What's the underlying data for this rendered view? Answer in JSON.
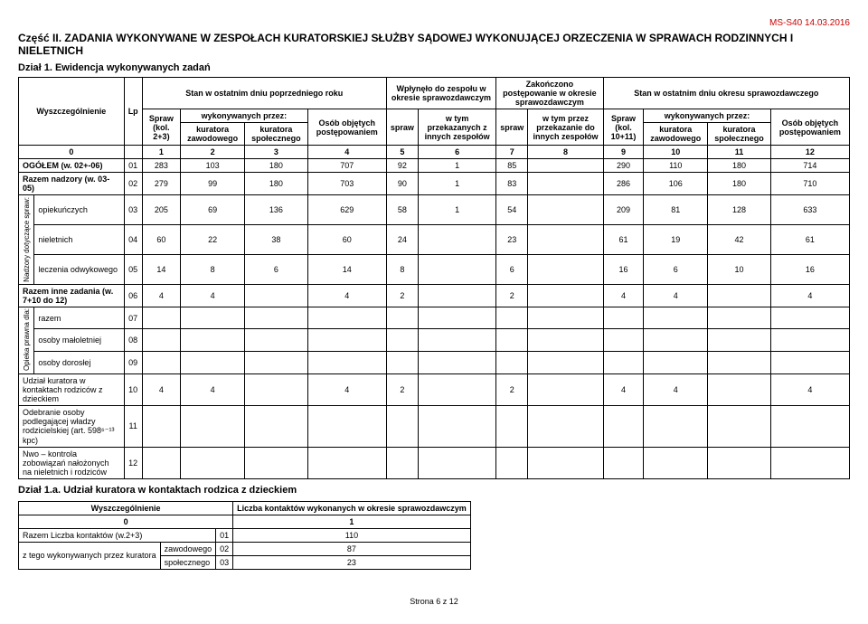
{
  "doc_id": "MS-S40 14.03.2016",
  "section2_title": "Część II. ZADANIA WYKONYWANE W ZESPOŁACH KURATORSKIEJ SŁUŻBY SĄDOWEJ WYKONUJĄCEJ ORZECZENIA W SPRAWACH RODZINNYCH I NIELETNICH",
  "dzial1_title": "Dział 1. Ewidencja wykonywanych zadań",
  "headers": {
    "wyszczegolnienie": "Wyszczególnienie",
    "lp": "Lp",
    "stan_poprz": "Stan w ostatnim dniu poprzedniego roku",
    "wplynelo": "Wpłynęło do zespołu w okresie sprawozdawczym",
    "zakonczono": "Zakończono postępowanie w okresie sprawozdawczym",
    "stan_ost": "Stan w ostatnim dniu okresu sprawozdawczego",
    "spraw_23": "Spraw (kol. 2+3)",
    "wykonywanych": "wykonywanych przez:",
    "osob_obj": "Osób objętych postępowaniem",
    "kur_zaw": "kuratora zawodowego",
    "kur_spol": "kuratora społecznego",
    "spraw": "spraw",
    "w_tym_przek": "w tym przekazanych z innych zespołów",
    "w_tym_przez": "w tym przez przekazanie do innych zespołów",
    "spraw_1011": "Spraw (kol. 10+11)"
  },
  "colnums": [
    "0",
    "1",
    "2",
    "3",
    "4",
    "5",
    "6",
    "7",
    "8",
    "9",
    "10",
    "11",
    "12"
  ],
  "group_nadzory": "Nadzory dotyczące spraw:",
  "group_opieka": "Opieka prawna dla:",
  "rows": [
    {
      "label": "OGÓŁEM (w. 02+-06)",
      "lp": "01",
      "v": [
        "283",
        "103",
        "180",
        "707",
        "92",
        "1",
        "85",
        "",
        "290",
        "110",
        "180",
        "714"
      ]
    },
    {
      "label": "Razem nadzory (w. 03-05)",
      "lp": "02",
      "v": [
        "279",
        "99",
        "180",
        "703",
        "90",
        "1",
        "83",
        "",
        "286",
        "106",
        "180",
        "710"
      ]
    },
    {
      "label": "opiekuńczych",
      "lp": "03",
      "v": [
        "205",
        "69",
        "136",
        "629",
        "58",
        "1",
        "54",
        "",
        "209",
        "81",
        "128",
        "633"
      ]
    },
    {
      "label": "nieletnich",
      "lp": "04",
      "v": [
        "60",
        "22",
        "38",
        "60",
        "24",
        "",
        "23",
        "",
        "61",
        "19",
        "42",
        "61"
      ]
    },
    {
      "label": "leczenia odwykowego",
      "lp": "05",
      "v": [
        "14",
        "8",
        "6",
        "14",
        "8",
        "",
        "6",
        "",
        "16",
        "6",
        "10",
        "16"
      ]
    },
    {
      "label": "Razem inne zadania (w. 7+10 do 12)",
      "lp": "06",
      "v": [
        "4",
        "4",
        "",
        "4",
        "2",
        "",
        "2",
        "",
        "4",
        "4",
        "",
        "4"
      ]
    },
    {
      "label": "razem",
      "lp": "07",
      "v": [
        "",
        "",
        "",
        "",
        "",
        "",
        "",
        "",
        "",
        "",
        "",
        ""
      ]
    },
    {
      "label": "osoby małoletniej",
      "lp": "08",
      "v": [
        "",
        "",
        "",
        "",
        "",
        "",
        "",
        "",
        "",
        "",
        "",
        ""
      ]
    },
    {
      "label": "osoby dorosłej",
      "lp": "09",
      "v": [
        "",
        "",
        "",
        "",
        "",
        "",
        "",
        "",
        "",
        "",
        "",
        ""
      ]
    },
    {
      "label": "Udział kuratora w kontaktach rodziców z dzieckiem",
      "lp": "10",
      "v": [
        "4",
        "4",
        "",
        "4",
        "2",
        "",
        "2",
        "",
        "4",
        "4",
        "",
        "4"
      ]
    },
    {
      "label": "Odebranie osoby podlegającej władzy rodzicielskiej (art. 598⁶⁻¹³ kpc)",
      "lp": "11",
      "v": [
        "",
        "",
        "",
        "",
        "",
        "",
        "",
        "",
        "",
        "",
        "",
        ""
      ]
    },
    {
      "label": "Nwo – kontrola zobowiązań nałożonych na nieletnich i rodziców",
      "lp": "12",
      "v": [
        "",
        "",
        "",
        "",
        "",
        "",
        "",
        "",
        "",
        "",
        "",
        ""
      ]
    }
  ],
  "dzial1a_title": "Dział 1.a. Udział kuratora w kontaktach rodzica z dzieckiem",
  "table1a": {
    "h_wysz": "Wyszczególnienie",
    "h_liczba": "Liczba kontaktów wykonanych w okresie sprawozdawczym",
    "c0": "0",
    "c1": "1",
    "rows": [
      {
        "label": "Razem Liczba kontaktów (w.2+3)",
        "lp": "01",
        "val": "110"
      },
      {
        "label": "zawodowego",
        "lp": "02",
        "val": "87"
      },
      {
        "label": "społecznego",
        "lp": "03",
        "val": "23"
      }
    ],
    "group_label": "z tego wykonywanych przez kuratora"
  },
  "footer": "Strona 6 z 12"
}
